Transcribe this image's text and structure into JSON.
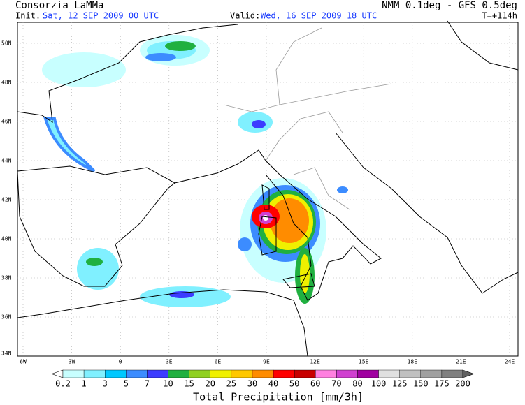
{
  "header": {
    "title": "Consorzia LaMMa",
    "model": "NMM 0.1deg - GFS 0.5deg",
    "init_label": "Init.:",
    "init": "Sat, 12 SEP 2009  00 UTC",
    "valid_label": "Valid:",
    "valid": "Wed, 16 SEP 2009  18 UTC",
    "lead": "T=+114h"
  },
  "map": {
    "lat_labels": [
      "50N",
      "48N",
      "46N",
      "44N",
      "42N",
      "40N",
      "38N",
      "36N",
      "34N"
    ],
    "lon_labels": [
      "6W",
      "3W",
      "0",
      "3E",
      "6E",
      "9E",
      "12E",
      "15E",
      "18E",
      "21E",
      "24E"
    ]
  },
  "legend": {
    "title": "Total Precipitation [mm/3h]",
    "labels": [
      "0.2",
      "1",
      "3",
      "5",
      "7",
      "10",
      "15",
      "20",
      "25",
      "30",
      "40",
      "50",
      "60",
      "70",
      "80",
      "100",
      "125",
      "150",
      "175",
      "200"
    ],
    "colors": [
      "#ffffff",
      "#c8ffff",
      "#80f0ff",
      "#00c8ff",
      "#3c8cff",
      "#3c3cff",
      "#20b040",
      "#90d020",
      "#f0f000",
      "#ffc800",
      "#ff8c00",
      "#ff0000",
      "#c80000",
      "#ff80e0",
      "#d040d0",
      "#a000a0",
      "#e0e0e0",
      "#c0c0c0",
      "#a0a0a0",
      "#808080",
      "#606060"
    ]
  }
}
